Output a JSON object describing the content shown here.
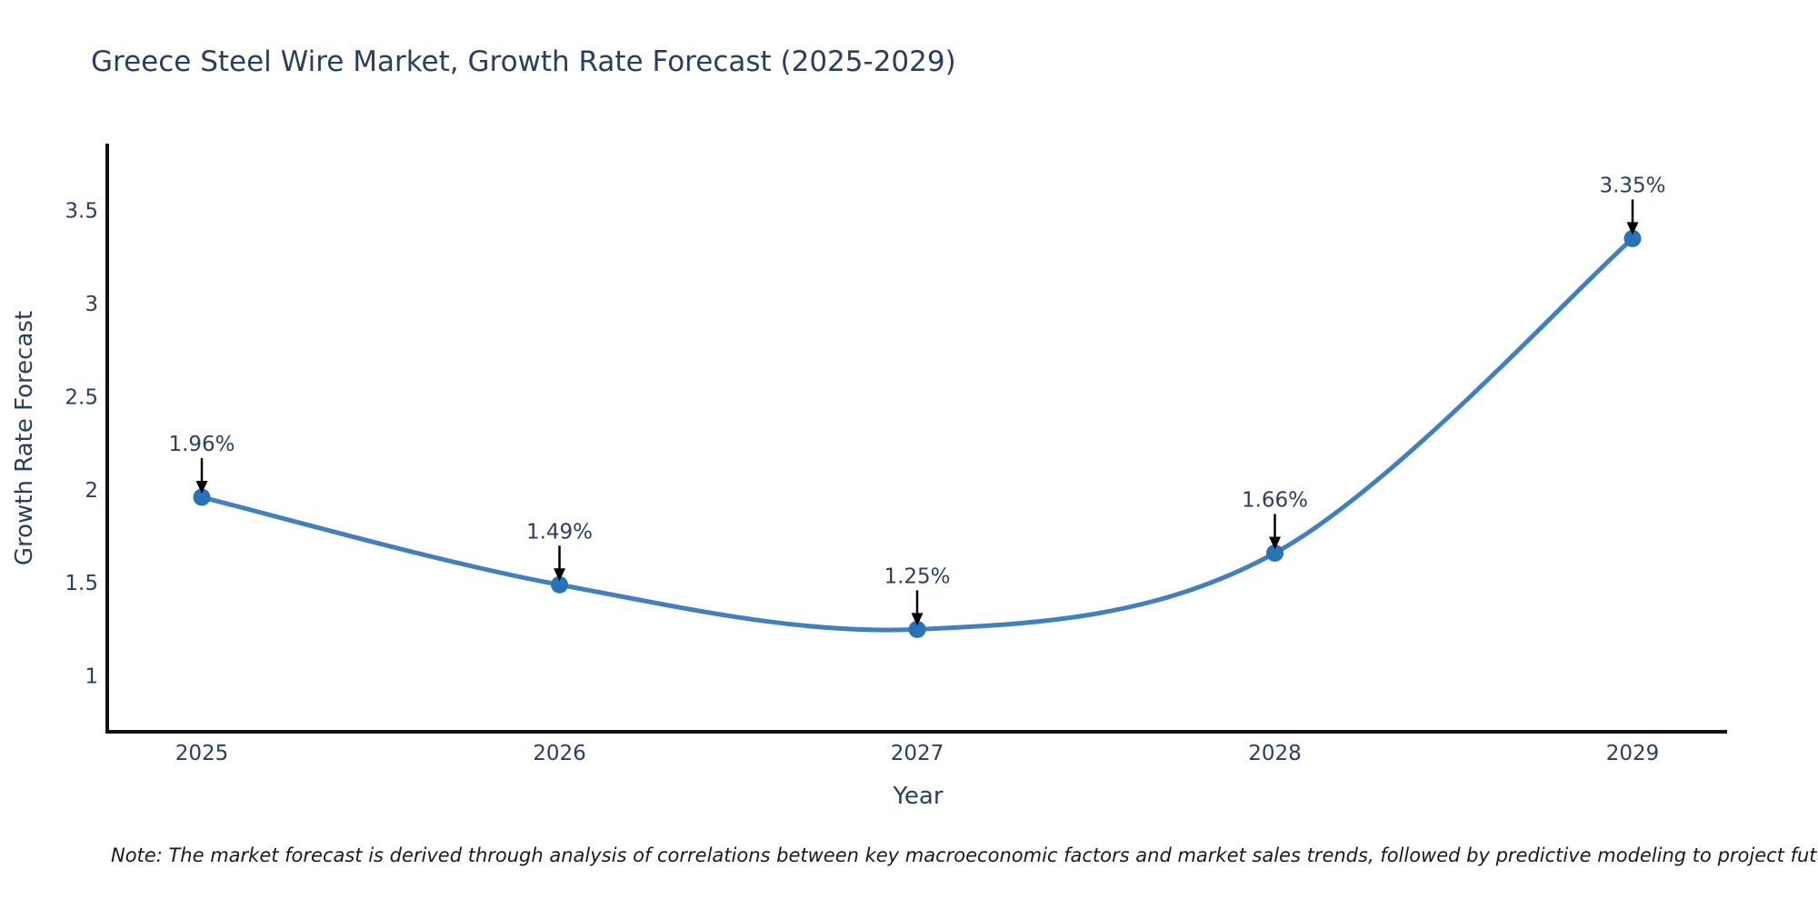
{
  "page": {
    "background": "#ffffff"
  },
  "title": {
    "text": "Greece Steel Wire Market, Growth Rate Forecast (2025-2029)"
  },
  "note": {
    "text": "Note: The market forecast is derived through analysis of correlations between key macroeconomic factors and market sales trends, followed by predictive modeling to project future sales"
  },
  "chart_data": {
    "type": "line",
    "smoothing": "spline",
    "categories": [
      "2025",
      "2026",
      "2027",
      "2028",
      "2029"
    ],
    "values": [
      1.96,
      1.49,
      1.25,
      1.66,
      3.35
    ],
    "point_labels": [
      "1.96%",
      "1.49%",
      "1.25%",
      "1.66%",
      "3.35%"
    ],
    "title": "Greece Steel Wire Market, Growth Rate Forecast (2025-2029)",
    "xlabel": "Year",
    "ylabel": "Growth Rate Forecast",
    "y_ticks": [
      3.5,
      3,
      2.5,
      2,
      1.5,
      1
    ],
    "y_tick_labels": [
      "3.5",
      "3",
      "2.5",
      "2",
      "1.5",
      "1"
    ],
    "ylim": [
      0.7,
      3.86
    ],
    "grid": false,
    "legend": "none",
    "colors": {
      "line": "#4180bc",
      "marker": "#2a72b5",
      "axis": "#101010",
      "text": "#2a3f5f",
      "annotation_arrow": "#000000"
    }
  }
}
